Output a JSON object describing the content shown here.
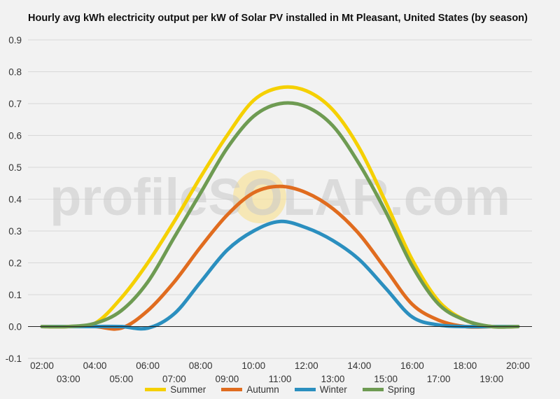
{
  "chart_data": {
    "type": "line",
    "title": "Hourly avg kWh electricity output per kW of Solar PV installed in Mt Pleasant, United States (by season)",
    "watermark": "profileSOLAR.com",
    "xlabel": "",
    "ylabel": "",
    "ylim": [
      -0.1,
      0.9
    ],
    "yticks": [
      "-0.1",
      "0.0",
      "0.1",
      "0.2",
      "0.3",
      "0.4",
      "0.5",
      "0.6",
      "0.7",
      "0.8",
      "0.9"
    ],
    "x": [
      "02:00",
      "03:00",
      "04:00",
      "05:00",
      "06:00",
      "07:00",
      "08:00",
      "09:00",
      "10:00",
      "11:00",
      "12:00",
      "13:00",
      "14:00",
      "15:00",
      "16:00",
      "17:00",
      "18:00",
      "19:00",
      "20:00"
    ],
    "grid": true,
    "legend_position": "bottom",
    "series": [
      {
        "name": "Summer",
        "color": "#f5d000",
        "values": [
          0.0,
          0.0,
          0.01,
          0.09,
          0.2,
          0.33,
          0.47,
          0.6,
          0.71,
          0.75,
          0.74,
          0.68,
          0.56,
          0.39,
          0.21,
          0.08,
          0.02,
          0.0,
          0.0
        ]
      },
      {
        "name": "Autumn",
        "color": "#e06c1f",
        "values": [
          0.0,
          0.0,
          0.0,
          -0.005,
          0.05,
          0.14,
          0.25,
          0.35,
          0.42,
          0.44,
          0.42,
          0.37,
          0.29,
          0.18,
          0.07,
          0.02,
          0.0,
          0.0,
          0.0
        ]
      },
      {
        "name": "Winter",
        "color": "#2b8fbf",
        "values": [
          0.0,
          0.0,
          0.0,
          0.0,
          -0.005,
          0.04,
          0.14,
          0.24,
          0.3,
          0.33,
          0.31,
          0.27,
          0.21,
          0.12,
          0.03,
          0.005,
          0.0,
          0.0,
          0.0
        ]
      },
      {
        "name": "Spring",
        "color": "#6e9b52",
        "values": [
          0.0,
          0.0,
          0.01,
          0.05,
          0.14,
          0.28,
          0.42,
          0.56,
          0.66,
          0.7,
          0.69,
          0.63,
          0.51,
          0.36,
          0.19,
          0.07,
          0.02,
          0.0,
          0.0
        ]
      }
    ]
  }
}
